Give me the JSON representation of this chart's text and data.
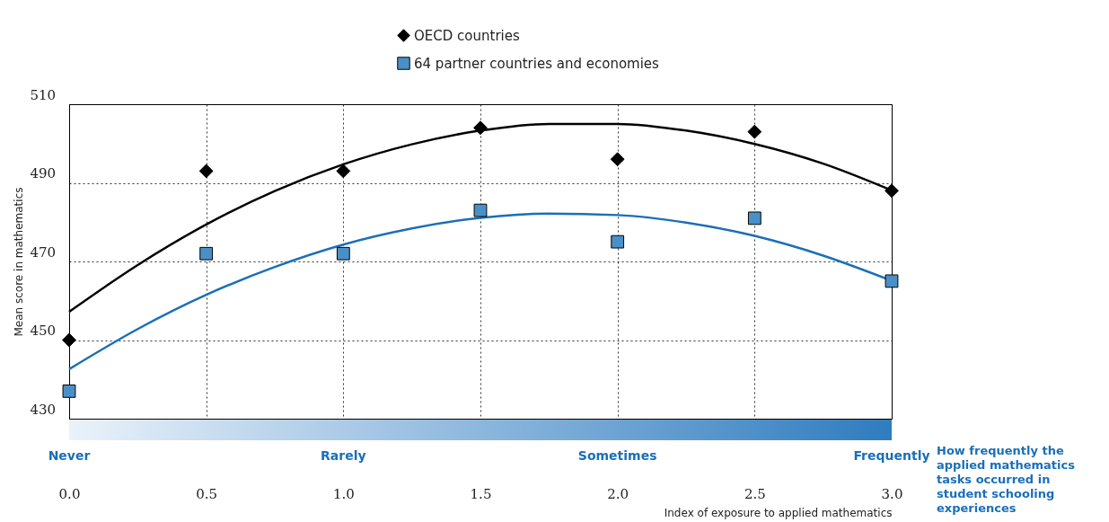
{
  "chart_data": {
    "type": "scatter",
    "xlabel": "Index of exposure to applied mathematics",
    "ylabel": "Mean score in mathematics",
    "x": [
      0,
      0.5,
      1,
      1.5,
      2,
      2.5,
      3
    ],
    "xlim": [
      0,
      3
    ],
    "xticks": [
      {
        "value": 0,
        "label": "0.0"
      },
      {
        "value": 0.5,
        "label": "0.5"
      },
      {
        "value": 1,
        "label": "1.0"
      },
      {
        "value": 1.5,
        "label": "1.5"
      },
      {
        "value": 2,
        "label": "2.0"
      },
      {
        "value": 2.5,
        "label": "2.5"
      },
      {
        "value": 3,
        "label": "3.0"
      }
    ],
    "ylim": [
      430,
      510
    ],
    "yticks": [
      430,
      450,
      470,
      490,
      510
    ],
    "grid": true,
    "legend": "top",
    "series": [
      {
        "name": "OECD countries",
        "marker": "diamond",
        "color": "#000000",
        "values": [
          450,
          493,
          493,
          504,
          496,
          503,
          488
        ]
      },
      {
        "name": "64 partner countries and economies",
        "marker": "square",
        "color": "#4a90c8",
        "values": [
          437,
          472,
          472,
          483,
          475,
          481,
          465
        ]
      },
      {
        "type": "line",
        "marker": "none",
        "color": "#000000",
        "x": [
          0,
          0.25,
          0.5,
          0.75,
          1,
          1.25,
          1.5,
          1.75,
          2,
          2.25,
          2.5,
          2.75,
          3
        ],
        "values": [
          457.2,
          469.1,
          479.4,
          487.9,
          494.7,
          499.8,
          503.3,
          505.0,
          505.0,
          503.3,
          499.9,
          494.9,
          488.1
        ]
      },
      {
        "type": "line",
        "marker": "none",
        "color": "#1a6fb8",
        "x": [
          0,
          0.25,
          0.5,
          0.75,
          1,
          1.25,
          1.5,
          1.75,
          2,
          2.25,
          2.5,
          2.75,
          3
        ],
        "values": [
          442.6,
          452.8,
          461.5,
          468.6,
          474.3,
          478.4,
          481.1,
          482.2,
          481.8,
          479.9,
          476.5,
          471.5,
          465.1
        ]
      }
    ],
    "annotations": [
      "Never",
      "Rarely",
      "Sometimes",
      "Frequently",
      "How frequently the applied mathematics tasks occurred in student schooling experiences"
    ]
  }
}
